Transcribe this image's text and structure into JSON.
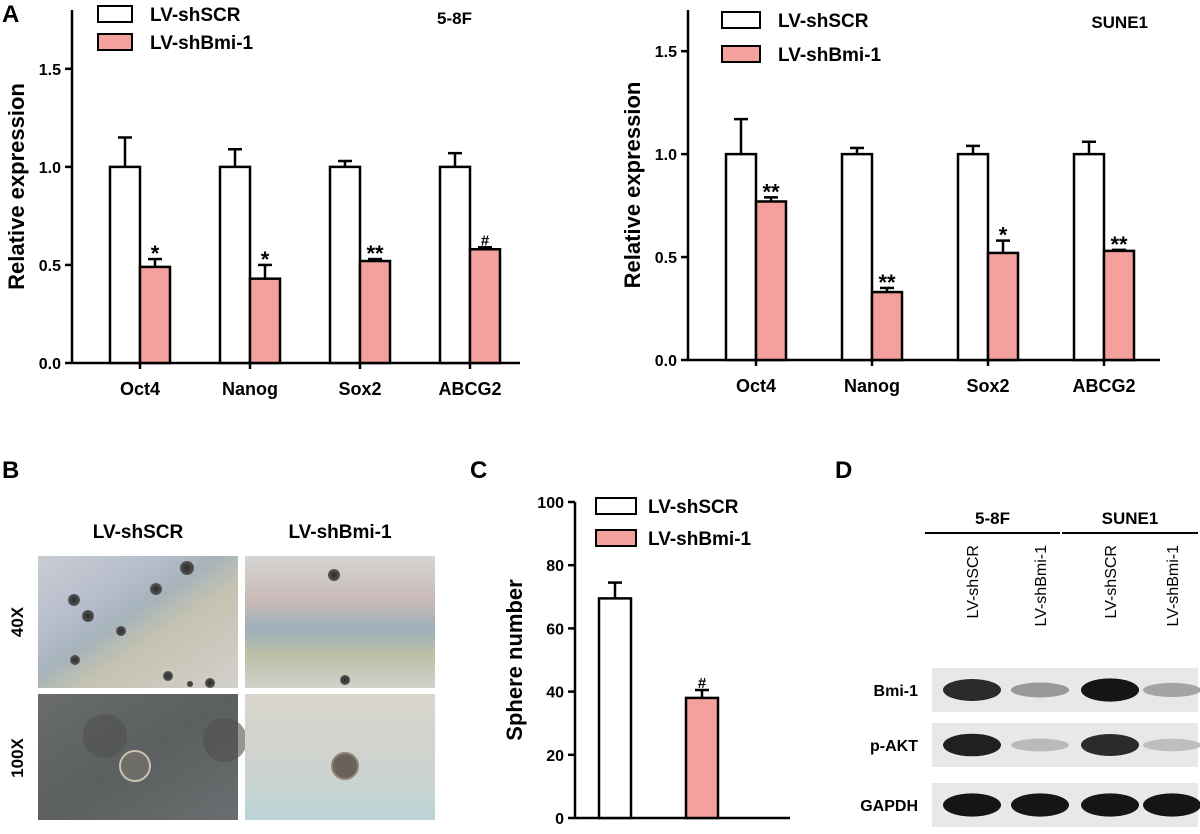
{
  "panels": {
    "a": "A",
    "b": "B",
    "c": "C",
    "d": "D"
  },
  "colors": {
    "control_fill": "#ffffff",
    "knockdown_fill": "#f4a09c",
    "stroke": "#000000"
  },
  "chart_data": [
    {
      "id": "A-left",
      "type": "bar",
      "title": "5-8F",
      "ylabel": "Relative expression",
      "xlabel": "",
      "ylim": [
        0,
        1.8
      ],
      "yticks": [
        "0.0",
        "0.5",
        "1.0",
        "1.5"
      ],
      "yticks_values": [
        0,
        0.5,
        1.0,
        1.5
      ],
      "categories": [
        "Oct4",
        "Nanog",
        "Sox2",
        "ABCG2"
      ],
      "legend": [
        "LV-shSCR",
        "LV-shBmi-1"
      ],
      "legend_position": "top-left",
      "series": [
        {
          "name": "LV-shSCR",
          "values": [
            1.0,
            1.0,
            1.0,
            1.0
          ],
          "errors": [
            0.15,
            0.09,
            0.03,
            0.07
          ]
        },
        {
          "name": "LV-shBmi-1",
          "values": [
            0.49,
            0.43,
            0.52,
            0.58
          ],
          "errors": [
            0.04,
            0.07,
            0.01,
            0.01
          ],
          "sig": [
            "*",
            "*",
            "**",
            "#"
          ]
        }
      ]
    },
    {
      "id": "A-right",
      "type": "bar",
      "title": "SUNE1",
      "ylabel": "Relative expression",
      "xlabel": "",
      "ylim": [
        0,
        1.7
      ],
      "yticks": [
        "0.0",
        "0.5",
        "1.0",
        "1.5"
      ],
      "yticks_values": [
        0,
        0.5,
        1.0,
        1.5
      ],
      "categories": [
        "Oct4",
        "Nanog",
        "Sox2",
        "ABCG2"
      ],
      "legend": [
        "LV-shSCR",
        "LV-shBmi-1"
      ],
      "legend_position": "top-left",
      "series": [
        {
          "name": "LV-shSCR",
          "values": [
            1.0,
            1.0,
            1.0,
            1.0
          ],
          "errors": [
            0.17,
            0.03,
            0.04,
            0.06
          ]
        },
        {
          "name": "LV-shBmi-1",
          "values": [
            0.77,
            0.33,
            0.52,
            0.53
          ],
          "errors": [
            0.02,
            0.02,
            0.06,
            0.005
          ],
          "sig": [
            "**",
            "**",
            "*",
            "**"
          ]
        }
      ]
    },
    {
      "id": "C",
      "type": "bar",
      "title": "",
      "ylabel": "Sphere number",
      "xlabel": "",
      "ylim": [
        0,
        100
      ],
      "yticks": [
        "0",
        "20",
        "40",
        "60",
        "80",
        "100"
      ],
      "yticks_values": [
        0,
        20,
        40,
        60,
        80,
        100
      ],
      "categories": [
        ""
      ],
      "legend": [
        "LV-shSCR",
        "LV-shBmi-1"
      ],
      "legend_position": "top-right",
      "series": [
        {
          "name": "LV-shSCR",
          "values": [
            69.5
          ],
          "errors": [
            5.0
          ]
        },
        {
          "name": "LV-shBmi-1",
          "values": [
            38.0
          ],
          "errors": [
            2.5
          ],
          "sig": [
            "#"
          ]
        }
      ]
    }
  ],
  "micrographs": {
    "columns": [
      "LV-shSCR",
      "LV-shBmi-1"
    ],
    "rows": [
      "40X",
      "100X"
    ]
  },
  "blot": {
    "groups": [
      "5-8F",
      "SUNE1"
    ],
    "lanes": [
      "LV-shSCR",
      "LV-shBmi-1",
      "LV-shSCR",
      "LV-shBmi-1"
    ],
    "proteins": [
      "Bmi-1",
      "p-AKT",
      "GAPDH"
    ],
    "intensity": [
      [
        0.85,
        0.35,
        0.95,
        0.3
      ],
      [
        0.9,
        0.2,
        0.85,
        0.18
      ],
      [
        0.95,
        0.95,
        0.95,
        0.95
      ]
    ]
  }
}
